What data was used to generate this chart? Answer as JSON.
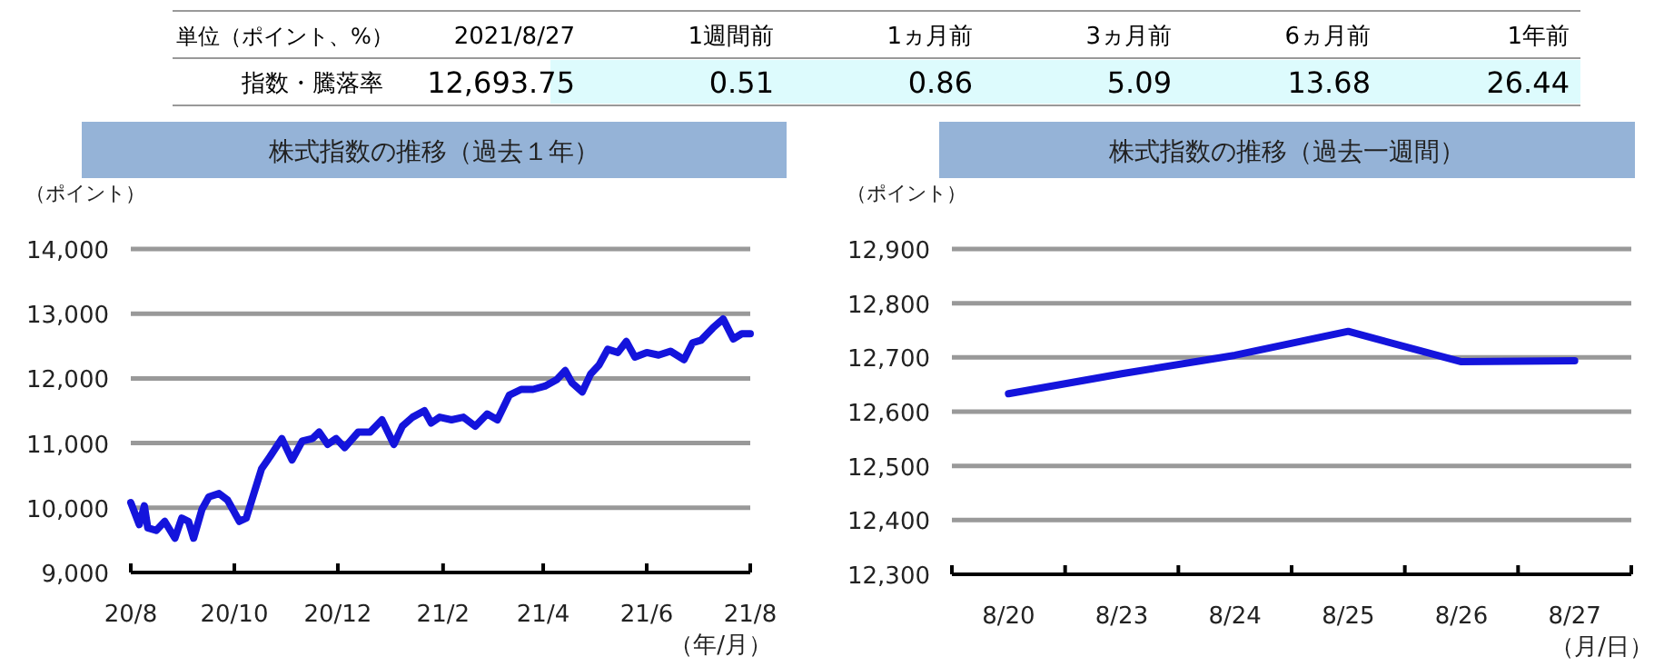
{
  "chart_data": [
    {
      "type": "other",
      "title": "単位（ポイント、%）",
      "ylabel": "指数・騰落率",
      "categories": [
        "2021/8/27",
        "1週間前",
        "1ヵ月前",
        "3ヵ月前",
        "6ヵ月前",
        "1年前"
      ],
      "value_labels": [
        "12,693.75",
        "0.51",
        "0.86",
        "5.09",
        "13.68",
        "26.44"
      ],
      "color": "#ddfbfd"
    },
    {
      "type": "line",
      "title": "株式指数の推移（過去１年）",
      "ylabel": "（ポイント）",
      "xlabel": "（年/月）",
      "grid": "y",
      "line_style": "solid",
      "marker": "none",
      "x": [
        "2020-08-27",
        "2020-09-01",
        "2020-09-04",
        "2020-09-06",
        "2020-09-11",
        "2020-09-16",
        "2020-09-22",
        "2020-09-26",
        "2020-09-30",
        "2020-10-03",
        "2020-10-08",
        "2020-10-12",
        "2020-10-18",
        "2020-10-23",
        "2020-10-30",
        "2020-11-03",
        "2020-11-12",
        "2020-11-17",
        "2020-11-24",
        "2020-11-30",
        "2020-12-06",
        "2020-12-12",
        "2020-12-16",
        "2020-12-21",
        "2020-12-26",
        "2020-12-31",
        "2021-01-08",
        "2021-01-15",
        "2021-01-22",
        "2021-01-29",
        "2021-02-03",
        "2021-02-09",
        "2021-02-16",
        "2021-02-20",
        "2021-02-25",
        "2021-03-04",
        "2021-03-11",
        "2021-03-18",
        "2021-03-25",
        "2021-03-31",
        "2021-04-07",
        "2021-04-14",
        "2021-04-21",
        "2021-04-28",
        "2021-05-05",
        "2021-05-10",
        "2021-05-14",
        "2021-05-20",
        "2021-05-25",
        "2021-05-30",
        "2021-06-04",
        "2021-06-10",
        "2021-06-15",
        "2021-06-20",
        "2021-06-27",
        "2021-07-04",
        "2021-07-11",
        "2021-07-19",
        "2021-07-24",
        "2021-07-29",
        "2021-08-05",
        "2021-08-11",
        "2021-08-17",
        "2021-08-22",
        "2021-08-27"
      ],
      "series": [
        {
          "color": "#1414dc",
          "values": [
            10080,
            9740,
            10030,
            9690,
            9650,
            9790,
            9530,
            9840,
            9790,
            9530,
            9980,
            10170,
            10220,
            10120,
            9790,
            9840,
            10600,
            10790,
            11070,
            10740,
            11030,
            11070,
            11170,
            10980,
            11070,
            10930,
            11170,
            11170,
            11360,
            10980,
            11260,
            11400,
            11500,
            11310,
            11400,
            11360,
            11400,
            11260,
            11450,
            11360,
            11740,
            11830,
            11830,
            11880,
            11980,
            12120,
            11930,
            11790,
            12070,
            12210,
            12450,
            12400,
            12570,
            12330,
            12400,
            12360,
            12420,
            12290,
            12550,
            12590,
            12780,
            12920,
            12610,
            12690,
            12690
          ]
        }
      ],
      "xlim": [
        "2020-08-27",
        "2021-08-27"
      ],
      "xticks": [
        {
          "value": "2020-08-27",
          "label": "20/8"
        },
        {
          "value": "2020-10-27",
          "label": "20/10"
        },
        {
          "value": "2020-12-27",
          "label": "20/12"
        },
        {
          "value": "2021-02-27",
          "label": "21/2"
        },
        {
          "value": "2021-04-27",
          "label": "21/4"
        },
        {
          "value": "2021-06-27",
          "label": "21/6"
        },
        {
          "value": "2021-08-27",
          "label": "21/8"
        }
      ],
      "ylim": [
        9000,
        14000
      ],
      "yticks": [
        {
          "value": 9000,
          "label": "9,000"
        },
        {
          "value": 10000,
          "label": "10,000"
        },
        {
          "value": 11000,
          "label": "11,000"
        },
        {
          "value": 12000,
          "label": "12,000"
        },
        {
          "value": 13000,
          "label": "13,000"
        },
        {
          "value": 14000,
          "label": "14,000"
        }
      ]
    },
    {
      "type": "line",
      "title": "株式指数の推移（過去一週間）",
      "ylabel": "（ポイント）",
      "xlabel": "（月/日）",
      "grid": "y",
      "line_style": "solid",
      "marker": "none",
      "categories": [
        "8/20",
        "8/23",
        "8/24",
        "8/25",
        "8/26",
        "8/27"
      ],
      "series": [
        {
          "color": "#1414dc",
          "values": [
            12633,
            12670,
            12704,
            12748,
            12692,
            12694
          ]
        }
      ],
      "ylim": [
        12300,
        12900
      ],
      "yticks": [
        {
          "value": 12300,
          "label": "12,300"
        },
        {
          "value": 12400,
          "label": "12,400"
        },
        {
          "value": 12500,
          "label": "12,500"
        },
        {
          "value": 12600,
          "label": "12,600"
        },
        {
          "value": 12700,
          "label": "12,700"
        },
        {
          "value": 12800,
          "label": "12,800"
        },
        {
          "value": 12900,
          "label": "12,900"
        }
      ]
    }
  ]
}
